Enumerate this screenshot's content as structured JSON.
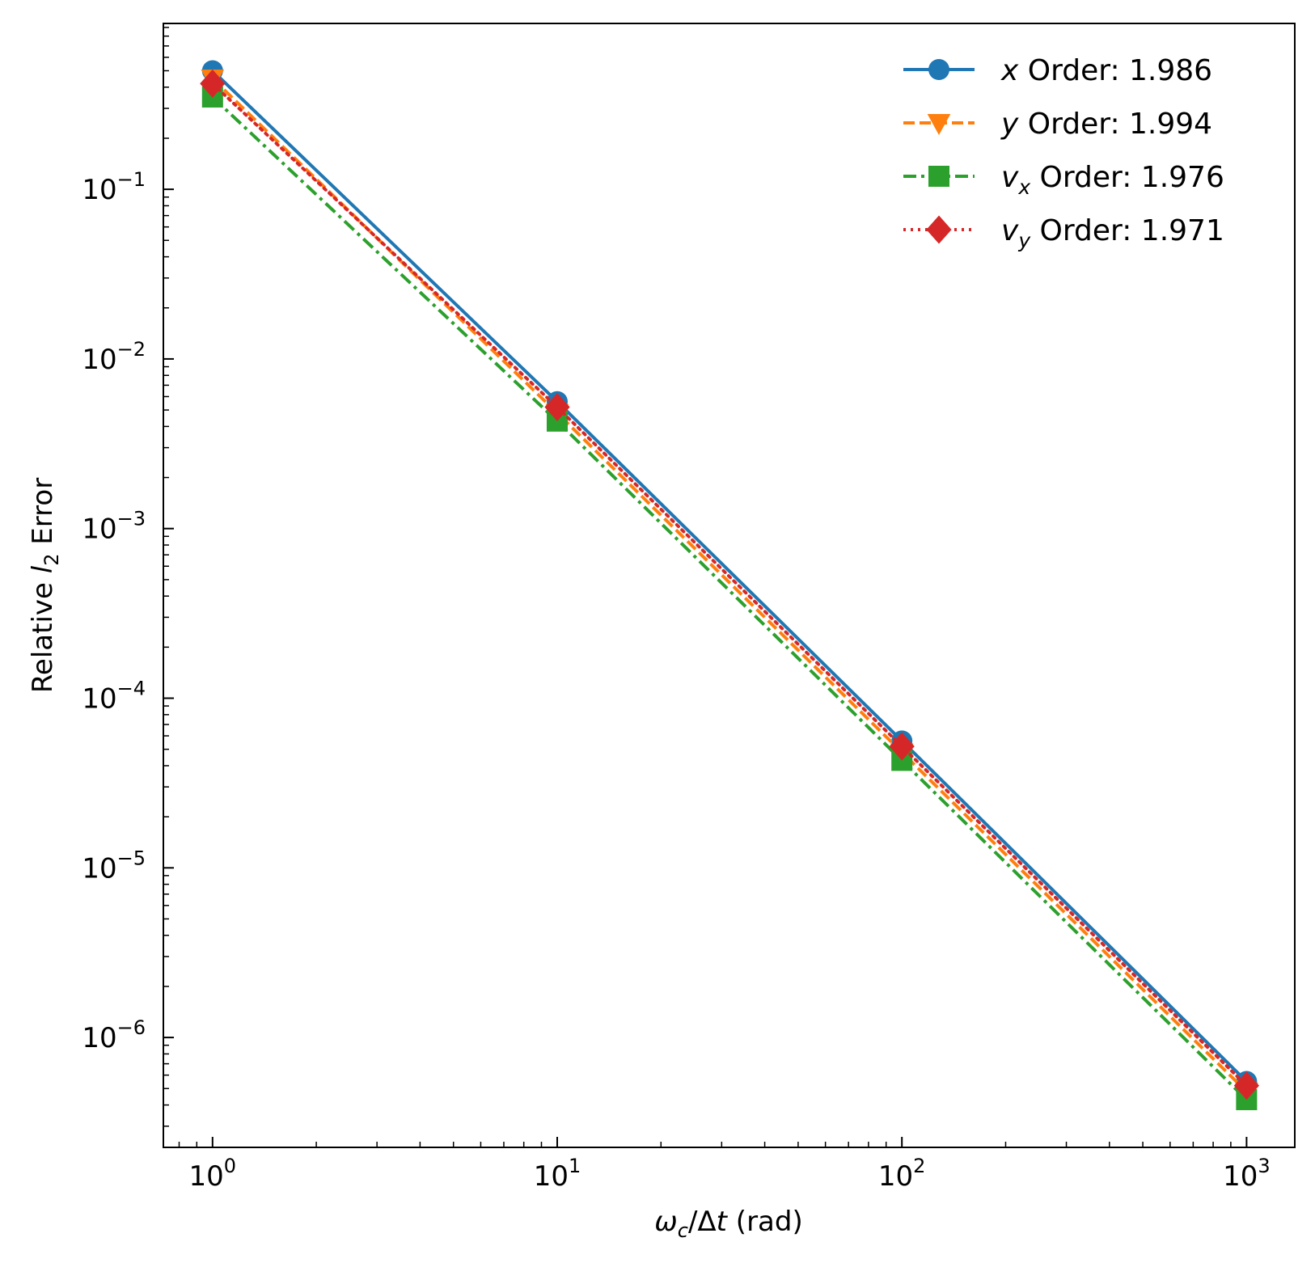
{
  "chart_data": {
    "type": "line",
    "xscale": "log",
    "yscale": "log",
    "xlim": [
      0.72,
      1380
    ],
    "ylim": [
      2.25e-07,
      0.95
    ],
    "x": [
      1,
      10,
      100,
      1000
    ],
    "xticks": [
      1,
      10,
      100,
      1000
    ],
    "yticks": [
      1e-06,
      1e-05,
      0.0001,
      0.001,
      0.01,
      0.1
    ],
    "xlabel": {
      "omega": "ω",
      "omega_sub": "c",
      "slash": "/Δ",
      "t": "t",
      "unit": " (rad)"
    },
    "ylabel": {
      "prefix": "Relative ",
      "l": "l",
      "l_sub": "2",
      "suffix": " Error"
    },
    "tick_base": "10",
    "grid": false,
    "legend_position": "top-right",
    "series": [
      {
        "name": "x Order: 1.986",
        "legend": {
          "var": "x",
          "sub": "",
          "text": " Order",
          "value": ": 1.986"
        },
        "values": [
          0.5,
          0.0056,
          5.6e-05,
          5.5e-07
        ],
        "color": "#1f77b4",
        "line_style": "solid",
        "marker": "circle"
      },
      {
        "name": "y Order: 1.994",
        "legend": {
          "var": "y",
          "sub": "",
          "text": " Order",
          "value": ": 1.994"
        },
        "values": [
          0.45,
          0.0048,
          4.8e-05,
          4.8e-07
        ],
        "color": "#ff7f0e",
        "line_style": "dashed",
        "marker": "triangle-down"
      },
      {
        "name": "v_x Order: 1.976",
        "legend": {
          "var": "v",
          "sub": "x",
          "text": " Order",
          "value": ": 1.976"
        },
        "values": [
          0.35,
          0.0043,
          4.3e-05,
          4.3e-07
        ],
        "color": "#2ca02c",
        "line_style": "dashdot",
        "marker": "square"
      },
      {
        "name": "v_y Order: 1.971",
        "legend": {
          "var": "v",
          "sub": "y",
          "text": " Order",
          "value": ": 1.971"
        },
        "values": [
          0.42,
          0.0052,
          5.2e-05,
          5.2e-07
        ],
        "color": "#d62728",
        "line_style": "dotted",
        "marker": "diamond"
      }
    ]
  }
}
